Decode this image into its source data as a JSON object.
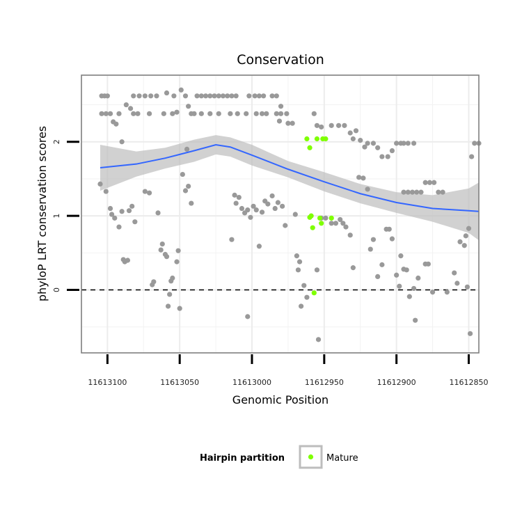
{
  "chart_data": {
    "type": "scatter",
    "title": "Conservation",
    "xlabel": "Genomic Position",
    "ylabel": "phyloP LRT conservation scores",
    "x_reversed": true,
    "xlim": [
      11613118,
      11612843
    ],
    "ylim": [
      -0.85,
      2.9
    ],
    "x_ticks": [
      11613100,
      11613050,
      11613000,
      11612950,
      11612900,
      11612850
    ],
    "x_tick_labels": [
      "11613100",
      "11613050",
      "11613000",
      "11612950",
      "11612900",
      "11612850"
    ],
    "y_ticks": [
      0,
      1,
      2
    ],
    "y_tick_labels": [
      "0",
      "1",
      "2"
    ],
    "grid": true,
    "reference_line": {
      "y": 0,
      "style": "dashed"
    },
    "colors": {
      "other": "#999999",
      "mature": "#7FFF00",
      "smooth_line": "#3366FF",
      "ribbon": "#BEBEBE"
    },
    "legend": {
      "title": "Hairpin partition",
      "position": "bottom",
      "entries": [
        {
          "label": "Mature",
          "color": "#7FFF00"
        }
      ]
    },
    "series": [
      {
        "group": "other",
        "points": [
          [
            11613105,
            1.43
          ],
          [
            11613101,
            1.33
          ],
          [
            11613098,
            1.1
          ],
          [
            11613097,
            1.02
          ],
          [
            11613095,
            0.97
          ],
          [
            11613092,
            0.85
          ],
          [
            11613090,
            1.06
          ],
          [
            11613089,
            0.41
          ],
          [
            11613088,
            0.38
          ],
          [
            11613086,
            0.4
          ],
          [
            11613085,
            1.07
          ],
          [
            11613083,
            1.13
          ],
          [
            11613081,
            0.92
          ],
          [
            11613104,
            2.62
          ],
          [
            11613102,
            2.62
          ],
          [
            11613100,
            2.62
          ],
          [
            11613104,
            2.38
          ],
          [
            11613101,
            2.38
          ],
          [
            11613098,
            2.38
          ],
          [
            11613096,
            2.27
          ],
          [
            11613094,
            2.24
          ],
          [
            11613092,
            2.38
          ],
          [
            11613090,
            2.0
          ],
          [
            11613087,
            2.5
          ],
          [
            11613084,
            2.45
          ],
          [
            11613082,
            2.38
          ],
          [
            11613079,
            2.38
          ],
          [
            11613082,
            2.62
          ],
          [
            11613078,
            2.62
          ],
          [
            11613074,
            2.62
          ],
          [
            11613070,
            2.62
          ],
          [
            11613066,
            2.62
          ],
          [
            11613071,
            2.38
          ],
          [
            11613061,
            2.38
          ],
          [
            11613055,
            2.38
          ],
          [
            11613059,
            2.66
          ],
          [
            11613054,
            2.62
          ],
          [
            11613049,
            2.7
          ],
          [
            11613046,
            2.62
          ],
          [
            11613052,
            2.4
          ],
          [
            11613074,
            1.33
          ],
          [
            11613071,
            1.31
          ],
          [
            11613069,
            0.07
          ],
          [
            11613068,
            0.11
          ],
          [
            11613065,
            1.04
          ],
          [
            11613063,
            0.54
          ],
          [
            11613062,
            0.62
          ],
          [
            11613060,
            0.48
          ],
          [
            11613059,
            0.45
          ],
          [
            11613058,
            -0.22
          ],
          [
            11613057,
            -0.06
          ],
          [
            11613056,
            0.12
          ],
          [
            11613055,
            0.16
          ],
          [
            11613052,
            0.38
          ],
          [
            11613051,
            0.53
          ],
          [
            11613050,
            -0.25
          ],
          [
            11613048,
            1.56
          ],
          [
            11613046,
            1.34
          ],
          [
            11613044,
            1.4
          ],
          [
            11613042,
            1.17
          ],
          [
            11613045,
            1.9
          ],
          [
            11613044,
            2.48
          ],
          [
            11613042,
            2.38
          ],
          [
            11613040,
            2.38
          ],
          [
            11613038,
            2.62
          ],
          [
            11613035,
            2.62
          ],
          [
            11613032,
            2.62
          ],
          [
            11613029,
            2.62
          ],
          [
            11613026,
            2.62
          ],
          [
            11613023,
            2.62
          ],
          [
            11613020,
            2.62
          ],
          [
            11613017,
            2.62
          ],
          [
            11613014,
            2.62
          ],
          [
            11613011,
            2.62
          ],
          [
            11613035,
            2.38
          ],
          [
            11613029,
            2.38
          ],
          [
            11613023,
            2.38
          ],
          [
            11613015,
            2.38
          ],
          [
            11613010,
            2.38
          ],
          [
            11613004,
            2.38
          ],
          [
            11613002,
            2.62
          ],
          [
            11612998,
            2.62
          ],
          [
            11612995,
            2.62
          ],
          [
            11612992,
            2.62
          ],
          [
            11612997,
            2.38
          ],
          [
            11612993,
            2.38
          ],
          [
            11612990,
            2.38
          ],
          [
            11612986,
            2.62
          ],
          [
            11612983,
            2.62
          ],
          [
            11612980,
            2.38
          ],
          [
            11612976,
            2.38
          ],
          [
            11612980,
            2.48
          ],
          [
            11612983,
            2.38
          ],
          [
            11612981,
            2.28
          ],
          [
            11613014,
            0.68
          ],
          [
            11613012,
            1.28
          ],
          [
            11613011,
            1.17
          ],
          [
            11613009,
            1.25
          ],
          [
            11613007,
            1.1
          ],
          [
            11613005,
            1.04
          ],
          [
            11613003,
            1.08
          ],
          [
            11613001,
            0.98
          ],
          [
            11612999,
            1.13
          ],
          [
            11612997,
            1.08
          ],
          [
            11612995,
            0.59
          ],
          [
            11612993,
            1.05
          ],
          [
            11612991,
            1.2
          ],
          [
            11612989,
            1.16
          ],
          [
            11612986,
            1.27
          ],
          [
            11612984,
            1.1
          ],
          [
            11612982,
            1.18
          ],
          [
            11612979,
            1.13
          ],
          [
            11612977,
            0.87
          ],
          [
            11613003,
            -0.36
          ],
          [
            11612975,
            2.25
          ],
          [
            11612972,
            2.25
          ],
          [
            11612970,
            1.02
          ],
          [
            11612969,
            0.46
          ],
          [
            11612968,
            0.27
          ],
          [
            11612967,
            0.38
          ],
          [
            11612966,
            -0.22
          ],
          [
            11612964,
            0.06
          ],
          [
            11612962,
            -0.1
          ],
          [
            11612955,
            0.27
          ],
          [
            11612954,
            -0.67
          ],
          [
            11612957,
            2.38
          ],
          [
            11612955,
            2.22
          ],
          [
            11612952,
            2.2
          ],
          [
            11612945,
            2.22
          ],
          [
            11612940,
            2.22
          ],
          [
            11612936,
            2.22
          ],
          [
            11612932,
            2.12
          ],
          [
            11612930,
            2.04
          ],
          [
            11612928,
            2.15
          ],
          [
            11612925,
            2.02
          ],
          [
            11612922,
            1.93
          ],
          [
            11612920,
            1.98
          ],
          [
            11612916,
            1.98
          ],
          [
            11612913,
            1.92
          ],
          [
            11612910,
            1.8
          ],
          [
            11612906,
            1.8
          ],
          [
            11612903,
            1.88
          ],
          [
            11612900,
            1.98
          ],
          [
            11612897,
            1.98
          ],
          [
            11612895,
            1.98
          ],
          [
            11612892,
            1.98
          ],
          [
            11612888,
            1.98
          ],
          [
            11612952,
            0.97
          ],
          [
            11612949,
            0.97
          ],
          [
            11612945,
            0.9
          ],
          [
            11612942,
            0.9
          ],
          [
            11612939,
            0.95
          ],
          [
            11612937,
            0.9
          ],
          [
            11612935,
            0.85
          ],
          [
            11612932,
            0.74
          ],
          [
            11612930,
            0.3
          ],
          [
            11612926,
            1.52
          ],
          [
            11612923,
            1.51
          ],
          [
            11612920,
            1.36
          ],
          [
            11612918,
            0.55
          ],
          [
            11612916,
            0.68
          ],
          [
            11612913,
            0.18
          ],
          [
            11612910,
            0.34
          ],
          [
            11612907,
            0.82
          ],
          [
            11612905,
            0.82
          ],
          [
            11612903,
            0.69
          ],
          [
            11612900,
            0.2
          ],
          [
            11612898,
            0.05
          ],
          [
            11612897,
            0.46
          ],
          [
            11612895,
            0.28
          ],
          [
            11612893,
            0.27
          ],
          [
            11612891,
            -0.09
          ],
          [
            11612888,
            0.02
          ],
          [
            11612885,
            0.16
          ],
          [
            11612880,
            0.35
          ],
          [
            11612878,
            0.35
          ],
          [
            11612875,
            -0.03
          ],
          [
            11612865,
            -0.03
          ],
          [
            11612860,
            0.23
          ],
          [
            11612858,
            0.09
          ],
          [
            11612856,
            0.65
          ],
          [
            11612853,
            0.6
          ],
          [
            11612852,
            0.73
          ],
          [
            11612850,
            0.83
          ],
          [
            11612848,
            1.8
          ],
          [
            11612849,
            -0.59
          ],
          [
            11612851,
            0.04
          ],
          [
            11612887,
            -0.41
          ],
          [
            11612895,
            1.32
          ],
          [
            11612892,
            1.32
          ],
          [
            11612889,
            1.32
          ],
          [
            11612886,
            1.32
          ],
          [
            11612883,
            1.32
          ],
          [
            11612880,
            1.45
          ],
          [
            11612877,
            1.45
          ],
          [
            11612874,
            1.45
          ],
          [
            11612871,
            1.32
          ],
          [
            11612868,
            1.32
          ],
          [
            11612846,
            1.98
          ],
          [
            11612843,
            1.98
          ]
        ]
      },
      {
        "group": "mature",
        "name": "Mature",
        "points": [
          [
            11612962,
            2.04
          ],
          [
            11612960,
            1.92
          ],
          [
            11612955,
            2.04
          ],
          [
            11612951,
            2.04
          ],
          [
            11612949,
            2.04
          ],
          [
            11612960,
            0.98
          ],
          [
            11612959,
            1.0
          ],
          [
            11612958,
            0.84
          ],
          [
            11612953,
            0.97
          ],
          [
            11612952,
            0.9
          ],
          [
            11612945,
            0.97
          ],
          [
            11612957,
            -0.04
          ]
        ]
      }
    ],
    "smooth_fit": {
      "method": "loess",
      "x": [
        11613105,
        11613080,
        11613060,
        11613040,
        11613025,
        11613015,
        11613000,
        11612975,
        11612950,
        11612925,
        11612900,
        11612875,
        11612850,
        11612843
      ],
      "y": [
        1.65,
        1.7,
        1.78,
        1.88,
        1.96,
        1.93,
        1.82,
        1.63,
        1.46,
        1.3,
        1.18,
        1.1,
        1.07,
        1.06
      ],
      "lower": [
        1.34,
        1.53,
        1.64,
        1.73,
        1.83,
        1.8,
        1.68,
        1.52,
        1.33,
        1.17,
        1.04,
        0.92,
        0.77,
        0.67
      ],
      "upper": [
        1.96,
        1.87,
        1.92,
        2.03,
        2.09,
        2.06,
        1.96,
        1.74,
        1.59,
        1.43,
        1.32,
        1.28,
        1.37,
        1.45
      ]
    }
  }
}
